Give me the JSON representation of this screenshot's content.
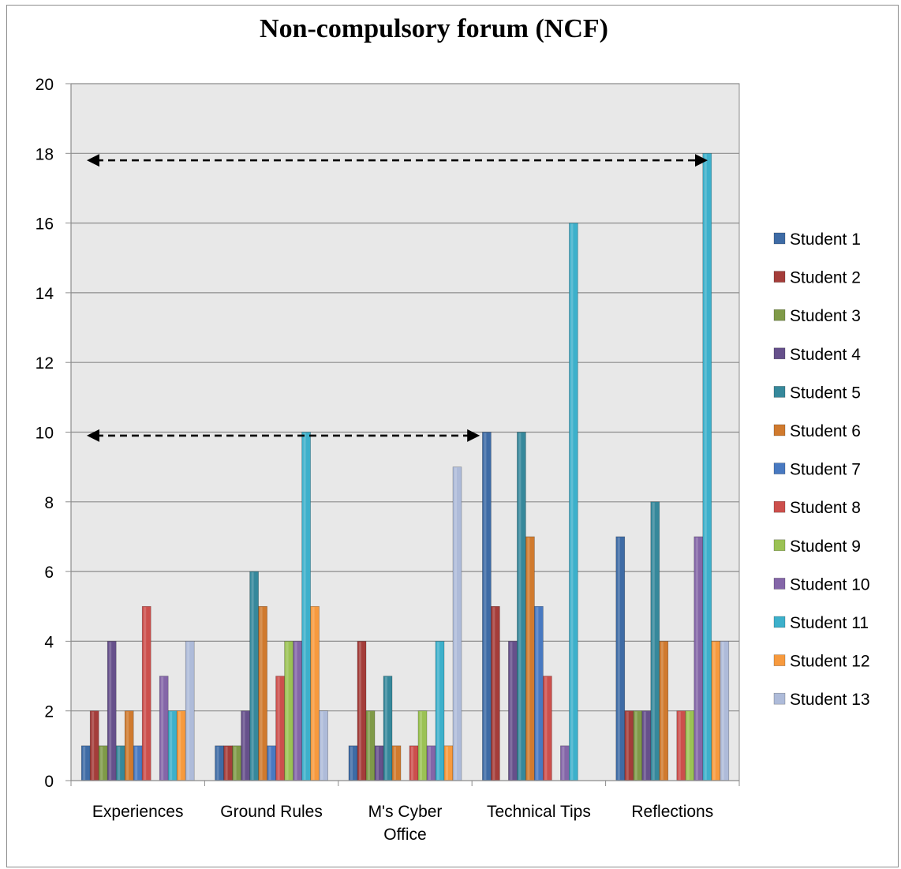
{
  "chart_data": {
    "type": "bar",
    "title": "Non-compulsory forum (NCF)",
    "xlabel": "",
    "ylabel": "",
    "ylim": [
      0,
      20
    ],
    "yticks": [
      0,
      2,
      4,
      6,
      8,
      10,
      12,
      14,
      16,
      18,
      20
    ],
    "grid": true,
    "legend_position": "right",
    "categories": [
      [
        "Experiences"
      ],
      [
        "Ground Rules"
      ],
      [
        "M's Cyber",
        "Office"
      ],
      [
        "Technical Tips"
      ],
      [
        "Reflections"
      ]
    ],
    "series": [
      {
        "name": "Student 1",
        "color": "#3e6ba5",
        "values": [
          1,
          1,
          1,
          10,
          7
        ]
      },
      {
        "name": "Student 2",
        "color": "#a43d3a",
        "values": [
          2,
          1,
          4,
          5,
          2
        ]
      },
      {
        "name": "Student 3",
        "color": "#7f9a48",
        "values": [
          1,
          1,
          2,
          0,
          2
        ]
      },
      {
        "name": "Student 4",
        "color": "#66508b",
        "values": [
          4,
          2,
          1,
          4,
          2
        ]
      },
      {
        "name": "Student 5",
        "color": "#36889b",
        "values": [
          1,
          6,
          3,
          10,
          8
        ]
      },
      {
        "name": "Student 6",
        "color": "#d07a2e",
        "values": [
          2,
          5,
          1,
          7,
          4
        ]
      },
      {
        "name": "Student 7",
        "color": "#4879c1",
        "values": [
          1,
          1,
          0,
          5,
          0
        ]
      },
      {
        "name": "Student 8",
        "color": "#cc4f4c",
        "values": [
          5,
          3,
          1,
          3,
          2
        ]
      },
      {
        "name": "Student 9",
        "color": "#9bc254",
        "values": [
          0,
          4,
          2,
          0,
          2
        ]
      },
      {
        "name": "Student 10",
        "color": "#8466a8",
        "values": [
          3,
          4,
          1,
          1,
          7
        ]
      },
      {
        "name": "Student 11",
        "color": "#3db0cb",
        "values": [
          2,
          10,
          4,
          16,
          18
        ]
      },
      {
        "name": "Student 12",
        "color": "#f79a3e",
        "values": [
          2,
          5,
          1,
          0,
          4
        ]
      },
      {
        "name": "Student 13",
        "color": "#aebbd9",
        "values": [
          4,
          2,
          9,
          0,
          4
        ]
      }
    ],
    "annotations": [
      {
        "type": "double-arrow",
        "y": 17.8,
        "from_category": "Experiences",
        "to_category": "Reflections"
      },
      {
        "type": "double-arrow",
        "y": 9.9,
        "from_category": "Experiences",
        "to_category": "M's Cyber Office"
      }
    ],
    "colors": {
      "plot_background": "#e8e8e8",
      "gridline": "#8c8c8c",
      "frame": "#8c8c8c"
    }
  }
}
